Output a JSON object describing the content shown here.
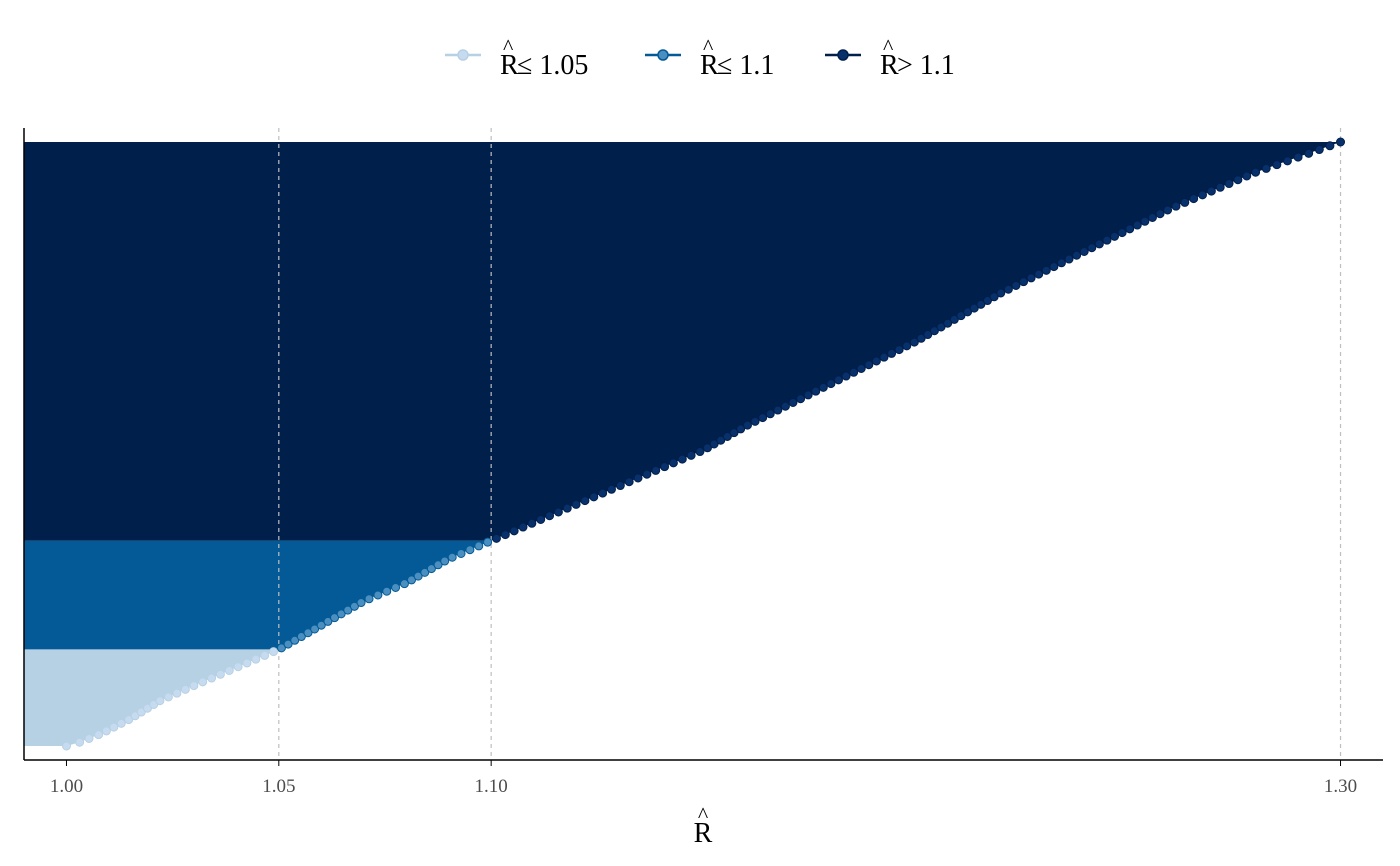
{
  "chart_data": {
    "type": "area",
    "description_free": true,
    "xlabel": "R",
    "xlabel_hat": "^",
    "xlim": [
      0.99,
      1.31
    ],
    "x_ticks": [
      1.0,
      1.05,
      1.1,
      1.3
    ],
    "x_tick_labels": [
      "1.00",
      "1.05",
      "1.10",
      "1.30"
    ],
    "reference_lines": [
      1.05,
      1.1,
      1.3
    ],
    "grid": false,
    "legend_position": "top",
    "legend": [
      {
        "key": "low",
        "symbol": "R",
        "hat": "^",
        "label_suffix": " ≤ 1.05",
        "color": "#b6d0e4",
        "point_color": "#c6dbef",
        "point_stroke": "#b6d0e4"
      },
      {
        "key": "mid",
        "symbol": "R",
        "hat": "^",
        "label_suffix": " ≤ 1.1",
        "color": "#035a96",
        "point_color": "#4b8fc0",
        "point_stroke": "#035a96"
      },
      {
        "key": "high",
        "symbol": "R",
        "hat": "^",
        "label_suffix": " > 1.1",
        "color": "#011f4b",
        "point_color": "#08306b",
        "point_stroke": "#011f4b"
      }
    ],
    "bands": [
      {
        "key": "low",
        "x_max": 1.05,
        "rank_from": 0,
        "rank_to": 0.16
      },
      {
        "key": "mid",
        "x_max": 1.1,
        "rank_from": 0.16,
        "rank_to": 0.34
      },
      {
        "key": "high",
        "x_max": 1.3,
        "rank_from": 0.34,
        "rank_to": 1.0
      }
    ],
    "curve": {
      "note_rank_is_sorted_fraction": true,
      "points": [
        [
          1.0,
          0.0
        ],
        [
          1.003,
          0.006
        ],
        [
          1.008,
          0.02
        ],
        [
          1.015,
          0.045
        ],
        [
          1.022,
          0.075
        ],
        [
          1.03,
          0.1
        ],
        [
          1.04,
          0.13
        ],
        [
          1.05,
          0.16
        ],
        [
          1.06,
          0.2
        ],
        [
          1.07,
          0.24
        ],
        [
          1.08,
          0.27
        ],
        [
          1.09,
          0.31
        ],
        [
          1.1,
          0.34
        ],
        [
          1.11,
          0.37
        ],
        [
          1.12,
          0.4
        ],
        [
          1.13,
          0.43
        ],
        [
          1.14,
          0.46
        ],
        [
          1.15,
          0.49
        ],
        [
          1.16,
          0.53
        ],
        [
          1.18,
          0.6
        ],
        [
          1.2,
          0.67
        ],
        [
          1.22,
          0.75
        ],
        [
          1.24,
          0.82
        ],
        [
          1.26,
          0.89
        ],
        [
          1.28,
          0.95
        ],
        [
          1.3,
          1.0
        ]
      ]
    },
    "colors": {
      "axis": "#000000",
      "ref_line": "#bfbfbf",
      "background": "#ffffff"
    }
  }
}
